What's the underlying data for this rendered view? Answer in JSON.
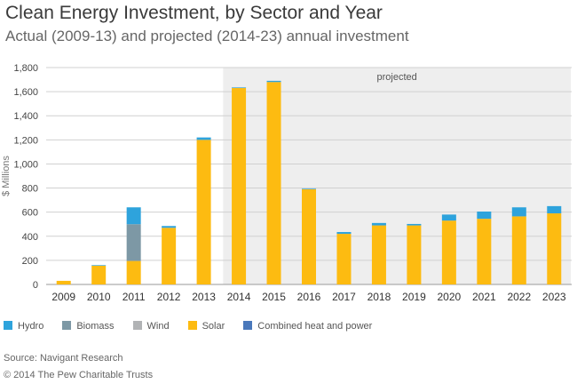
{
  "title": "Clean Energy Investment, by Sector and Year",
  "subtitle": "Actual (2009-13) and projected (2014-23) annual investment",
  "source": "Source: Navigant Research",
  "copyright": "© 2014 The Pew Charitable Trusts",
  "chart_data": {
    "type": "bar",
    "stacked": true,
    "categories": [
      "2009",
      "2010",
      "2011",
      "2012",
      "2013",
      "2014",
      "2015",
      "2016",
      "2017",
      "2018",
      "2019",
      "2020",
      "2021",
      "2022",
      "2023"
    ],
    "ylabel": "$ Millions",
    "ylim": [
      0,
      1800
    ],
    "yticks": [
      0,
      200,
      400,
      600,
      800,
      1000,
      1200,
      1400,
      1600,
      1800
    ],
    "ytick_labels": [
      "0",
      "200",
      "400",
      "600",
      "800",
      "1,000",
      "1,200",
      "1,400",
      "1,600",
      "1,800"
    ],
    "grid": true,
    "legend_position": "bottom",
    "projected_region": {
      "start": "2014",
      "end": "2023",
      "label": "projected"
    },
    "series": [
      {
        "name": "Solar",
        "color": "#fdbb11",
        "values": [
          30,
          155,
          195,
          470,
          1200,
          1630,
          1680,
          790,
          420,
          490,
          490,
          530,
          545,
          565,
          590
        ]
      },
      {
        "name": "Wind",
        "color": "#b1b3b5",
        "values": [
          0,
          0,
          0,
          0,
          0,
          0,
          0,
          0,
          0,
          0,
          0,
          0,
          0,
          0,
          0
        ]
      },
      {
        "name": "Biomass",
        "color": "#7d98a5",
        "values": [
          0,
          0,
          305,
          0,
          0,
          0,
          0,
          0,
          0,
          0,
          0,
          0,
          0,
          0,
          0
        ]
      },
      {
        "name": "Hydro",
        "color": "#2ea3dc",
        "values": [
          0,
          5,
          140,
          15,
          20,
          5,
          10,
          5,
          15,
          20,
          12,
          50,
          60,
          75,
          60
        ]
      },
      {
        "name": "Combined heat and power",
        "color": "#4a78bb",
        "values": [
          0,
          0,
          0,
          0,
          0,
          0,
          0,
          0,
          0,
          0,
          0,
          0,
          0,
          0,
          0
        ]
      }
    ],
    "legend": [
      "Hydro",
      "Biomass",
      "Wind",
      "Solar",
      "Combined heat and power"
    ]
  }
}
